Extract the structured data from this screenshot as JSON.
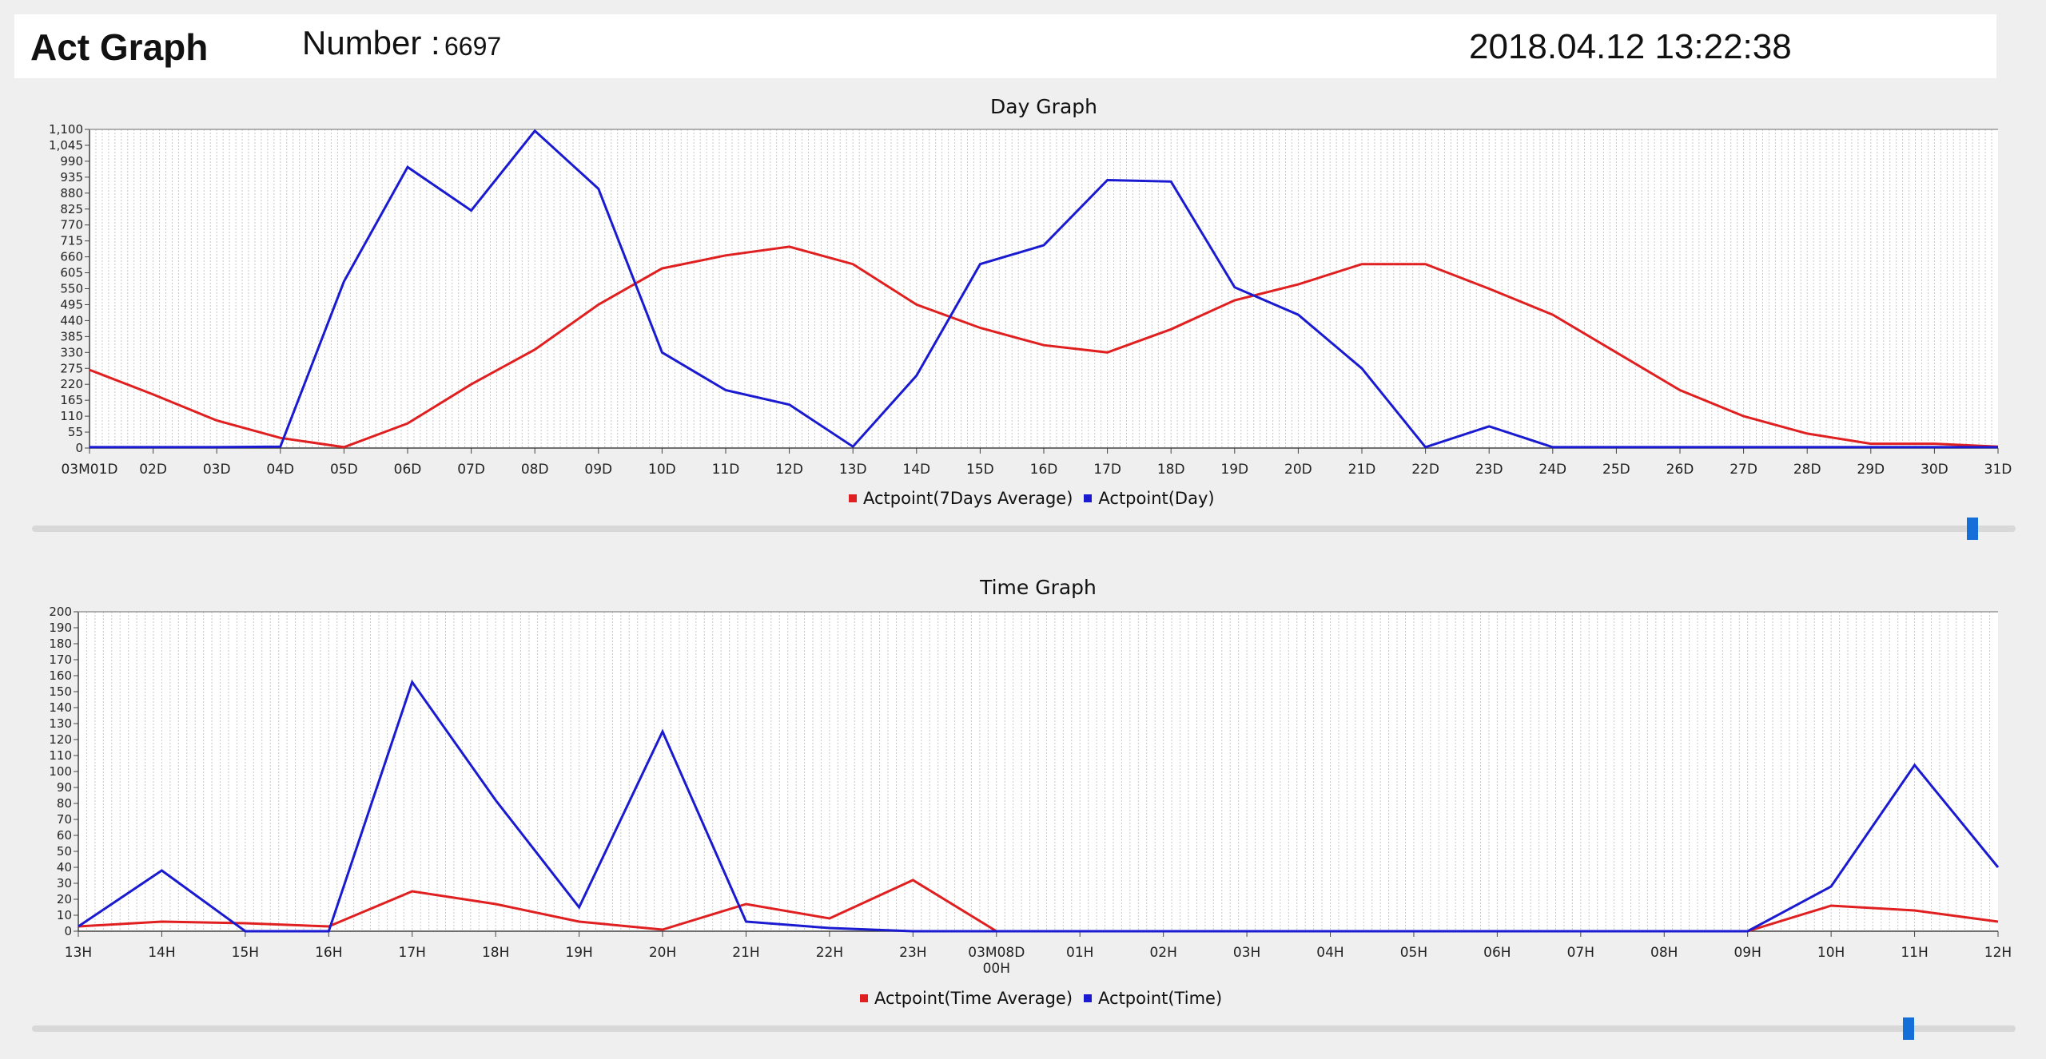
{
  "header": {
    "title": "Act Graph",
    "number_label": "Number :",
    "number_value": "6697",
    "datetime": "2018.04.12  13:22:38"
  },
  "colors": {
    "average": "#e02020",
    "actual": "#1a1ad0"
  },
  "chart_data": [
    {
      "type": "line",
      "title": "Day Graph",
      "ylim": [
        0,
        1100
      ],
      "yticks": [
        0,
        55,
        110,
        165,
        220,
        275,
        330,
        385,
        440,
        495,
        550,
        605,
        660,
        715,
        770,
        825,
        880,
        935,
        990,
        1045,
        1100
      ],
      "ytick_labels": [
        "0",
        "55",
        "110",
        "165",
        "220",
        "275",
        "330",
        "385",
        "440",
        "495",
        "550",
        "605",
        "660",
        "715",
        "770",
        "825",
        "880",
        "935",
        "990",
        "1,045",
        "1,100"
      ],
      "categories": [
        "03M01D",
        "02D",
        "03D",
        "04D",
        "05D",
        "06D",
        "07D",
        "08D",
        "09D",
        "10D",
        "11D",
        "12D",
        "13D",
        "14D",
        "15D",
        "16D",
        "17D",
        "18D",
        "19D",
        "20D",
        "21D",
        "22D",
        "23D",
        "24D",
        "25D",
        "26D",
        "27D",
        "28D",
        "29D",
        "30D",
        "31D"
      ],
      "grid": true,
      "legend": "bottom",
      "series": [
        {
          "name": "Actpoint(7Days Average)",
          "color": "#e02020",
          "values": [
            270,
            185,
            95,
            35,
            3,
            85,
            220,
            340,
            495,
            620,
            665,
            695,
            635,
            495,
            415,
            355,
            330,
            410,
            510,
            565,
            635,
            635,
            550,
            460,
            330,
            200,
            110,
            50,
            15,
            15,
            5
          ]
        },
        {
          "name": "Actpoint(Day)",
          "color": "#1a1ad0",
          "values": [
            3,
            3,
            3,
            5,
            575,
            970,
            820,
            1095,
            895,
            330,
            200,
            150,
            5,
            250,
            635,
            700,
            925,
            920,
            555,
            460,
            275,
            3,
            75,
            3,
            3,
            3,
            3,
            3,
            3,
            3,
            3
          ]
        }
      ]
    },
    {
      "type": "line",
      "title": "Time Graph",
      "ylim": [
        0,
        200
      ],
      "yticks": [
        0,
        10,
        20,
        30,
        40,
        50,
        60,
        70,
        80,
        90,
        100,
        110,
        120,
        130,
        140,
        150,
        160,
        170,
        180,
        190,
        200
      ],
      "ytick_labels": [
        "0",
        "10",
        "20",
        "30",
        "40",
        "50",
        "60",
        "70",
        "80",
        "90",
        "100",
        "110",
        "120",
        "130",
        "140",
        "150",
        "160",
        "170",
        "180",
        "190",
        "200"
      ],
      "categories": [
        "13H",
        "14H",
        "15H",
        "16H",
        "17H",
        "18H",
        "19H",
        "20H",
        "21H",
        "22H",
        "23H",
        "03M08D\n00H",
        "01H",
        "02H",
        "03H",
        "04H",
        "05H",
        "06H",
        "07H",
        "08H",
        "09H",
        "10H",
        "11H",
        "12H"
      ],
      "grid": true,
      "legend": "bottom",
      "series": [
        {
          "name": "Actpoint(Time Average)",
          "color": "#e02020",
          "values": [
            3,
            6,
            5,
            3,
            25,
            17,
            6,
            1,
            17,
            8,
            32,
            0,
            0,
            0,
            0,
            0,
            0,
            0,
            0,
            0,
            0,
            16,
            13,
            6
          ]
        },
        {
          "name": "Actpoint(Time)",
          "color": "#1a1ad0",
          "values": [
            3,
            38,
            0,
            0,
            156,
            82,
            15,
            125,
            6,
            2,
            0,
            0,
            0,
            0,
            0,
            0,
            0,
            0,
            0,
            0,
            0,
            28,
            104,
            40
          ]
        }
      ]
    }
  ]
}
